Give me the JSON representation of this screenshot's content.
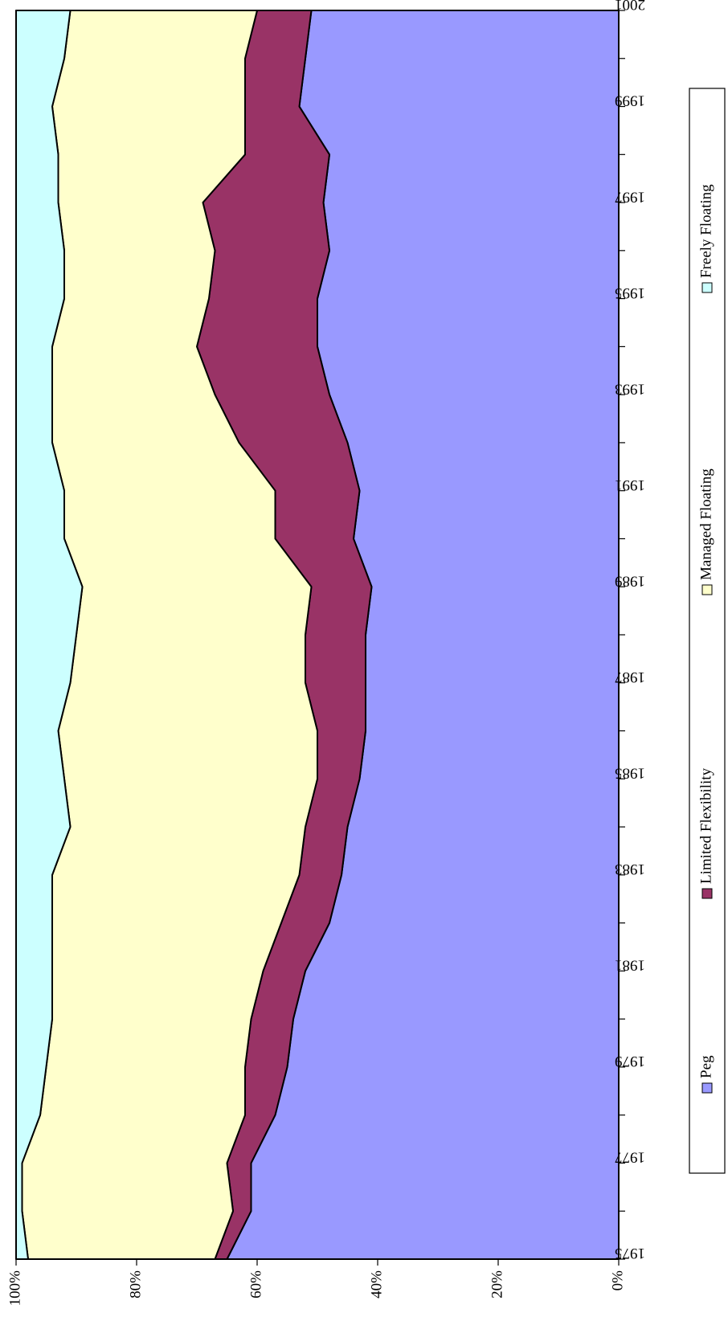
{
  "chart_data": {
    "type": "area",
    "stacked": true,
    "normalized": true,
    "x": [
      1975,
      1976,
      1977,
      1978,
      1979,
      1980,
      1981,
      1982,
      1983,
      1984,
      1985,
      1986,
      1987,
      1988,
      1989,
      1990,
      1991,
      1992,
      1993,
      1994,
      1995,
      1996,
      1997,
      1998,
      1999,
      2000,
      2001
    ],
    "x_ticks": [
      "1975",
      "1977",
      "1979",
      "1981",
      "1983",
      "1985",
      "1987",
      "1989",
      "1991",
      "1993",
      "1995",
      "1997",
      "1999",
      "2001"
    ],
    "y_ticks": [
      "0%",
      "20%",
      "40%",
      "60%",
      "80%",
      "100%"
    ],
    "ylim": [
      0,
      100
    ],
    "orientation": "rotated-90-clockwise",
    "grid": false,
    "legend_position": "right",
    "series": [
      {
        "name": "Peg",
        "color": "#9999ff",
        "values": [
          65,
          61,
          61,
          57,
          55,
          54,
          52,
          48,
          46,
          45,
          43,
          42,
          42,
          42,
          41,
          44,
          43,
          45,
          48,
          50,
          50,
          48,
          49,
          48,
          53,
          52,
          51
        ]
      },
      {
        "name": "Limited Flexibility",
        "color": "#993366",
        "values": [
          2,
          3,
          4,
          5,
          7,
          7,
          7,
          8,
          7,
          7,
          7,
          8,
          10,
          10,
          10,
          13,
          14,
          18,
          19,
          20,
          18,
          19,
          20,
          14,
          9,
          10,
          9
        ]
      },
      {
        "name": "Managed Floating",
        "color": "#ffffcc",
        "values": [
          31,
          35,
          34,
          34,
          33,
          33,
          35,
          38,
          41,
          39,
          42,
          43,
          39,
          38,
          38,
          35,
          35,
          31,
          27,
          24,
          24,
          25,
          24,
          31,
          32,
          30,
          31
        ]
      },
      {
        "name": "Freely Floating",
        "color": "#ccffff",
        "values": [
          2,
          1,
          1,
          4,
          5,
          6,
          6,
          6,
          6,
          9,
          8,
          7,
          9,
          10,
          11,
          8,
          8,
          6,
          6,
          6,
          8,
          8,
          7,
          7,
          6,
          8,
          9
        ]
      }
    ]
  }
}
